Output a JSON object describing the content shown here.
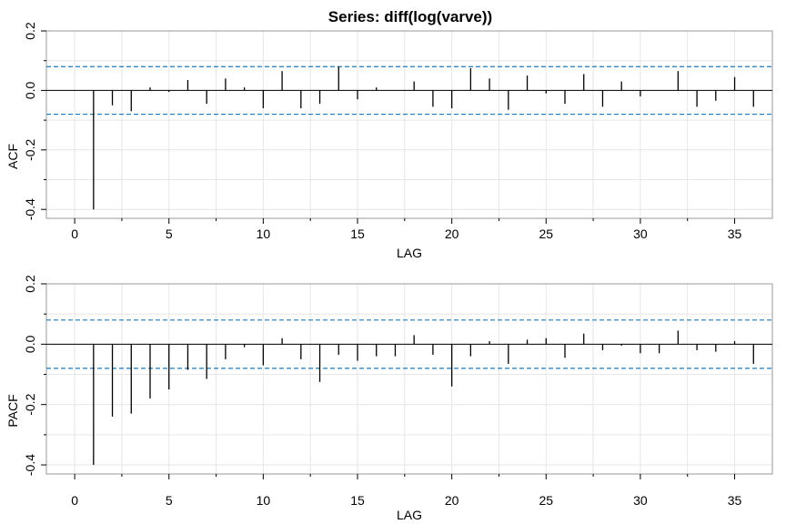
{
  "title": "Series:  diff(log(varve))",
  "chart_data": [
    {
      "type": "bar",
      "ylabel": "ACF",
      "xlabel": "LAG",
      "xlim": [
        0,
        36
      ],
      "ylim": [
        -0.43,
        0.2
      ],
      "xticks": [
        "0",
        "5",
        "10",
        "15",
        "20",
        "25",
        "30",
        "35"
      ],
      "yticks": [
        "-0.4",
        "-0.2",
        "0.0",
        "0.2"
      ],
      "confidence_bound": 0.08,
      "grid": true,
      "lags": [
        1,
        2,
        3,
        4,
        5,
        6,
        7,
        8,
        9,
        10,
        11,
        12,
        13,
        14,
        15,
        16,
        17,
        18,
        19,
        20,
        21,
        22,
        23,
        24,
        25,
        26,
        27,
        28,
        29,
        30,
        31,
        32,
        33,
        34,
        35,
        36
      ],
      "values": [
        -0.4,
        -0.05,
        -0.07,
        0.01,
        -0.005,
        0.035,
        -0.045,
        0.04,
        0.01,
        -0.06,
        0.065,
        -0.06,
        -0.045,
        0.08,
        -0.03,
        0.01,
        0.0,
        0.03,
        -0.055,
        -0.06,
        0.075,
        0.04,
        -0.065,
        0.05,
        -0.01,
        -0.045,
        0.055,
        -0.055,
        0.03,
        -0.02,
        0.0,
        0.065,
        -0.055,
        -0.035,
        0.045,
        -0.055
      ],
      "color": "#000000",
      "bound_color": "#1f77b4"
    },
    {
      "type": "bar",
      "ylabel": "PACF",
      "xlabel": "LAG",
      "xlim": [
        0,
        36
      ],
      "ylim": [
        -0.43,
        0.2
      ],
      "xticks": [
        "0",
        "5",
        "10",
        "15",
        "20",
        "25",
        "30",
        "35"
      ],
      "yticks": [
        "-0.4",
        "-0.2",
        "0.0",
        "0.2"
      ],
      "confidence_bound": 0.08,
      "grid": true,
      "lags": [
        1,
        2,
        3,
        4,
        5,
        6,
        7,
        8,
        9,
        10,
        11,
        12,
        13,
        14,
        15,
        16,
        17,
        18,
        19,
        20,
        21,
        22,
        23,
        24,
        25,
        26,
        27,
        28,
        29,
        30,
        31,
        32,
        33,
        34,
        35,
        36
      ],
      "values": [
        -0.4,
        -0.24,
        -0.23,
        -0.18,
        -0.15,
        -0.085,
        -0.115,
        -0.05,
        -0.01,
        -0.07,
        0.02,
        -0.05,
        -0.125,
        -0.035,
        -0.055,
        -0.04,
        -0.04,
        0.03,
        -0.035,
        -0.14,
        -0.04,
        0.01,
        -0.065,
        0.015,
        0.02,
        -0.045,
        0.035,
        -0.02,
        -0.005,
        -0.03,
        -0.03,
        0.045,
        -0.02,
        -0.025,
        0.01,
        -0.065
      ],
      "color": "#000000",
      "bound_color": "#1f77b4"
    }
  ]
}
